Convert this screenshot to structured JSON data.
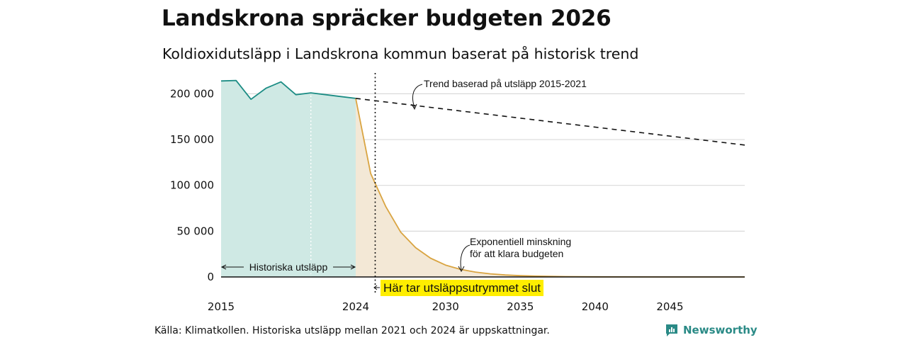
{
  "chart_data": {
    "type": "area",
    "title": "Landskrona spräcker budgeten 2026",
    "subtitle": "Koldioxidutsläpp i Landskrona kommun baserat på historisk trend",
    "xlim": [
      2015,
      2050
    ],
    "ylim": [
      0,
      215000
    ],
    "x_ticks": [
      {
        "value": 2015,
        "label": "2015"
      },
      {
        "value": 2024,
        "label": "2024"
      },
      {
        "value": 2030,
        "label": "2030"
      },
      {
        "value": 2035,
        "label": "2035"
      },
      {
        "value": 2040,
        "label": "2040"
      },
      {
        "value": 2045,
        "label": "2045"
      }
    ],
    "y_ticks": [
      {
        "value": 0,
        "label": "0"
      },
      {
        "value": 50000,
        "label": "50 000"
      },
      {
        "value": 100000,
        "label": "100 000"
      },
      {
        "value": 150000,
        "label": "150 000"
      },
      {
        "value": 200000,
        "label": "200 000"
      }
    ],
    "grid": true,
    "series": [
      {
        "name": "Historiska utsläpp",
        "color": "#1b8c84",
        "fill": "#cfe9e4",
        "x": [
          2015,
          2016,
          2017,
          2018,
          2019,
          2020,
          2021,
          2022,
          2023,
          2024
        ],
        "y": [
          214000,
          214500,
          194000,
          206000,
          213000,
          199000,
          201000,
          199000,
          197000,
          195000
        ]
      },
      {
        "name": "Exponentiell minskning för att klara budgeten",
        "color": "#d9a441",
        "fill": "#f3e8d6",
        "x": [
          2024,
          2025,
          2026,
          2027,
          2028,
          2029,
          2030,
          2031,
          2032,
          2033,
          2034,
          2035,
          2036,
          2038,
          2040,
          2045,
          2050
        ],
        "y": [
          195000,
          113000,
          77000,
          49000,
          32000,
          20500,
          13000,
          8300,
          5300,
          3400,
          2200,
          1400,
          900,
          400,
          150,
          20,
          0
        ]
      },
      {
        "name": "Trend baserad på utsläpp 2015-2021",
        "color": "#111111",
        "style": "dashed",
        "x": [
          2024,
          2050
        ],
        "y": [
          195000,
          144000
        ]
      }
    ],
    "markers": [
      {
        "name": "budget-end",
        "x": 2025.3,
        "style": "dotted",
        "color": "#111111"
      },
      {
        "name": "estimate-start",
        "x": 2021,
        "style": "dotted",
        "color": "#ffffff"
      }
    ],
    "annotations": {
      "trend_label": "Trend baserad på utsläpp 2015-2021",
      "exp_label_line1": "Exponentiell minskning",
      "exp_label_line2": "för att klara budgeten",
      "historical_label": "Historiska utsläpp",
      "callout": "Här tar utsläppsutrymmet slut"
    },
    "source": "Källa: Klimatkollen. Historiska utsläpp mellan 2021 och 2024 är uppskattningar."
  },
  "brand": {
    "name": "Newsworthy",
    "icon": "newsworthy-logo-icon",
    "color": "#2a8a86"
  }
}
